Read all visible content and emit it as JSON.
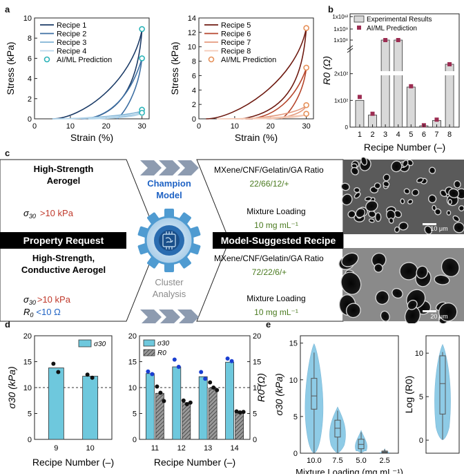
{
  "panel_labels": {
    "a": "a",
    "b": "b",
    "c": "c",
    "d": "d",
    "e": "e"
  },
  "colors": {
    "blue_dark": "#1a3a66",
    "blue_mid": "#3d6fa3",
    "blue_light": "#7fb3d5",
    "blue_pale": "#b8d8ec",
    "teal": "#2ab3b8",
    "red_dark": "#6e1a10",
    "red_mid": "#b5452b",
    "red_light": "#e49a7e",
    "red_pale": "#f4c9b5",
    "orange": "#e6915a",
    "crimson": "#9c2d52",
    "bar_grey": "#d9d9d9",
    "bar_cyan": "#6ec8dd",
    "violin": "#8ecbe6",
    "dark_red_text": "#c0392b",
    "green_text": "#4a7a1f",
    "blue_text": "#1e62c4"
  },
  "panel_c": {
    "left_top_title_1": "High-Strength",
    "left_top_title_2": "Aerogel",
    "left_top_req_sym": "σ",
    "left_top_req_sub": "30",
    "left_top_req_val": ">10 kPa",
    "property_request": "Property Request",
    "left_bot_title_1": "High-Strength,",
    "left_bot_title_2": "Conductive Aerogel",
    "left_bot_req1_sym": "σ",
    "left_bot_req1_sub": "30",
    "left_bot_req1_val": ">10 kPa",
    "left_bot_req2_sym": "R",
    "left_bot_req2_sub": "0",
    "left_bot_req2_val": "<10 Ω",
    "champion_1": "Champion",
    "champion_2": "Model",
    "cluster_1": "Cluster",
    "cluster_2": "Analysis",
    "ratio_label_top": "MXene/CNF/Gelatin/GA Ratio",
    "ratio_value_top": "22/66/12/+",
    "loading_label_top": "Mixture Loading",
    "loading_value_top": "10 mg mL⁻¹",
    "model_suggested": "Model-Suggested Recipe",
    "ratio_label_bot": "MXene/CNF/Gelatin/GA Ratio",
    "ratio_value_bot": "72/22/6/+",
    "loading_label_bot": "Mixture Loading",
    "loading_value_bot": "10 mg mL⁻¹",
    "scale_top": "10 μm",
    "scale_bot": "20 μm"
  },
  "chart_data": [
    {
      "id": "a-left",
      "type": "line",
      "xlabel": "Strain (%)",
      "ylabel": "Stress (kPa)",
      "xlim": [
        0,
        32
      ],
      "ylim": [
        0,
        10
      ],
      "xticks": [
        0,
        10,
        20,
        30
      ],
      "yticks": [
        0,
        2,
        4,
        6,
        8,
        10
      ],
      "legend": [
        "Recipe 1",
        "Recipe 2",
        "Recipe 3",
        "Recipe 4",
        "AI/ML Prediction"
      ],
      "series": [
        {
          "name": "Recipe 1",
          "peak": 8.8,
          "onset": 5
        },
        {
          "name": "Recipe 2",
          "peak": 6.0,
          "onset": 13
        },
        {
          "name": "Recipe 3",
          "peak": 0.8,
          "onset": 5
        },
        {
          "name": "Recipe 4",
          "peak": 0.6,
          "onset": 5
        }
      ],
      "prediction": [
        [
          30,
          8.9
        ],
        [
          30,
          6.0
        ],
        [
          30,
          0.9
        ],
        [
          30,
          0.6
        ]
      ]
    },
    {
      "id": "a-right",
      "type": "line",
      "xlabel": "Strain (%)",
      "ylabel": "Stress (kPa)",
      "xlim": [
        0,
        32
      ],
      "ylim": [
        0,
        14
      ],
      "xticks": [
        0,
        10,
        20,
        30
      ],
      "yticks": [
        0,
        2,
        4,
        6,
        8,
        10,
        12,
        14
      ],
      "legend": [
        "Recipe 5",
        "Recipe 6",
        "Recipe 7",
        "Recipe 8",
        "AI/ML Prediction"
      ],
      "series": [
        {
          "name": "Recipe 5",
          "peak": 12.6,
          "onset": 2
        },
        {
          "name": "Recipe 6",
          "peak": 7.0,
          "onset": 13
        },
        {
          "name": "Recipe 7",
          "peak": 1.8,
          "onset": 10
        },
        {
          "name": "Recipe 8",
          "peak": 0.6,
          "onset": 5
        }
      ],
      "prediction": [
        [
          30,
          12.6
        ],
        [
          30,
          7.1
        ],
        [
          30,
          1.9
        ],
        [
          30,
          0.7
        ]
      ]
    },
    {
      "id": "b",
      "type": "bar",
      "xlabel": "Recipe Number (–)",
      "ylabel": "R0 (Ω)",
      "categories": [
        "1",
        "2",
        "3",
        "4",
        "5",
        "6",
        "7",
        "8"
      ],
      "yticks": [
        "0",
        "1x10²",
        "2x10²",
        "1x10⁸",
        "1x10⁹",
        "1x10¹²"
      ],
      "legend": [
        "Experimental Results",
        "AI/ML Prediction"
      ],
      "experimental": [
        100,
        45,
        null,
        null,
        150,
        5,
        25,
        null
      ],
      "prediction": [
        113,
        50,
        null,
        null,
        153,
        7,
        28,
        null
      ],
      "segment_positions": {
        "low_scale": [
          0,
          300
        ],
        "broken_bars": {
          "3": "1x10⁹",
          "4": "1x10⁹",
          "8": "1x10⁸"
        }
      }
    },
    {
      "id": "d-left",
      "type": "bar",
      "xlabel": "Recipe Number (–)",
      "ylabel": "σ30 (kPa)",
      "categories": [
        "9",
        "10"
      ],
      "values": [
        13.8,
        12.2
      ],
      "ylim": [
        0,
        20
      ],
      "yticks": [
        0,
        5,
        10,
        15,
        20
      ],
      "legend": [
        "σ30"
      ],
      "threshold": 10,
      "points": [
        [
          14.6,
          13.0
        ],
        [
          12.5,
          11.9
        ]
      ]
    },
    {
      "id": "d-right",
      "type": "bar",
      "xlabel": "Recipe Number (–)",
      "ylabel": "σ30 (kPa)",
      "ylabel2": "R0 (Ω)",
      "categories": [
        "11",
        "12",
        "13",
        "14"
      ],
      "sigma": [
        12.7,
        14.0,
        12.1,
        14.9
      ],
      "r0": [
        8.9,
        7.1,
        9.9,
        5.3
      ],
      "ylim": [
        0,
        20
      ],
      "y2lim": [
        0,
        20
      ],
      "yticks": [
        0,
        5,
        10,
        15,
        20
      ],
      "legend": [
        "σ30",
        "R0"
      ],
      "threshold": 10,
      "sigma_points": [
        [
          13.1,
          12.6
        ],
        [
          15.4,
          14.0
        ],
        [
          13.0,
          11.7
        ],
        [
          15.6,
          15.1
        ]
      ],
      "r0_points": [
        [
          10.2,
          9.0,
          7.4
        ],
        [
          7.5,
          6.8,
          7.1
        ],
        [
          11.0,
          10.0,
          9.5
        ],
        [
          5.4,
          5.2,
          5.3
        ]
      ]
    },
    {
      "id": "e-left",
      "type": "violin",
      "xlabel": "Mixture Loading (mg mL⁻¹)",
      "ylabel": "σ30 (kPa)",
      "categories": [
        "10.0",
        "7.5",
        "5.0",
        "2.5"
      ],
      "ylim": [
        0,
        16
      ],
      "yticks": [
        0,
        5,
        10,
        15
      ],
      "median": [
        7.8,
        3.4,
        1.2,
        0.2
      ],
      "q1": [
        6.0,
        2.2,
        0.6,
        0.1
      ],
      "q3": [
        10.2,
        4.5,
        1.9,
        0.3
      ],
      "max": [
        14.9,
        6.3,
        3.1,
        0.6
      ]
    },
    {
      "id": "e-right",
      "type": "violin",
      "ylabel": "Log (R0)",
      "ylim": [
        -1.5,
        12
      ],
      "yticks": [
        0,
        5,
        10
      ],
      "median": [
        6.5
      ],
      "q1": [
        3.0
      ],
      "q3": [
        9.7
      ],
      "max": [
        11.0
      ]
    }
  ]
}
